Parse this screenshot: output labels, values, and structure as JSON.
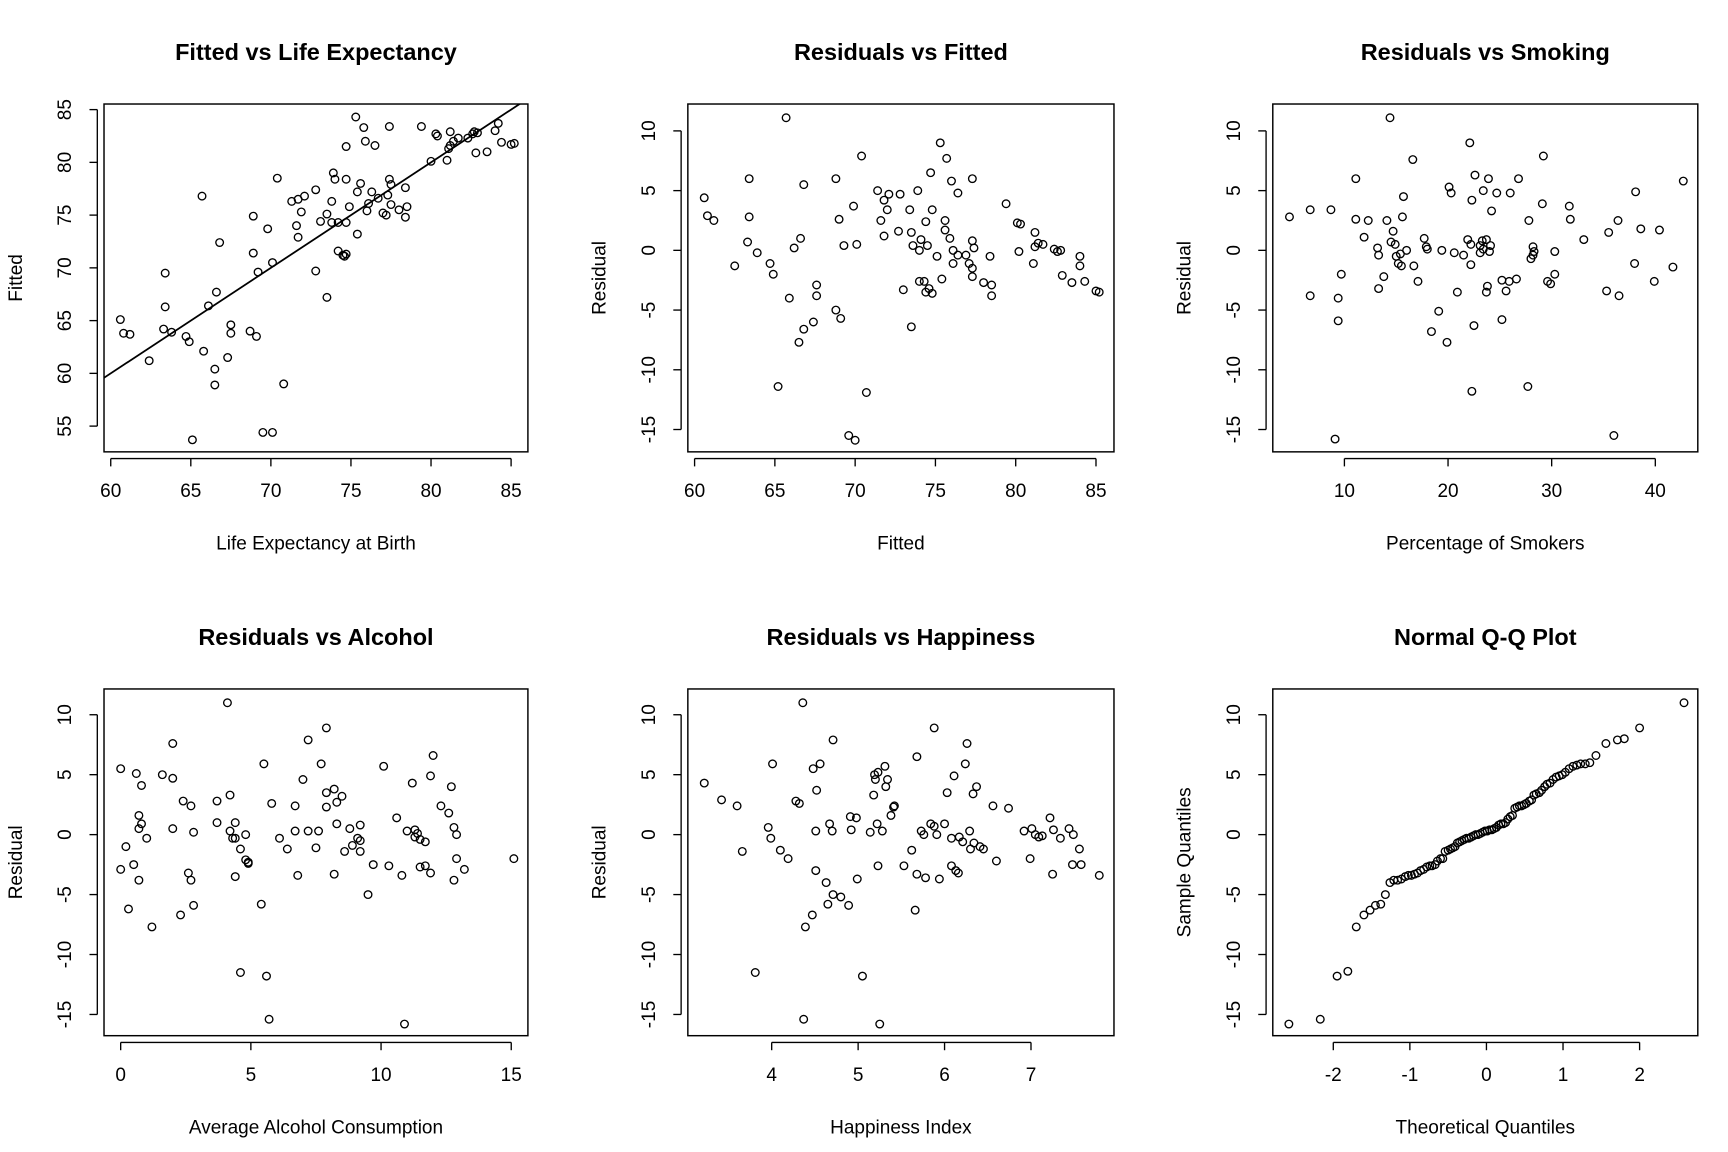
{
  "chart_data": [
    {
      "type": "scatter",
      "title": "Fitted vs Life Expectancy",
      "x_label": "Life Expectancy at Birth",
      "y_label": "Fitted",
      "xlim": [
        59.58,
        86.05
      ],
      "ylim": [
        52.56,
        85.53
      ],
      "xticks": [
        60,
        65,
        70,
        75,
        80,
        85
      ],
      "yticks": [
        55,
        60,
        65,
        70,
        75,
        80,
        85
      ],
      "abline": {
        "intercept": 0,
        "slope": 1
      },
      "x": [
        60.6,
        60.8,
        61.2,
        62.4,
        63.4,
        63.4,
        63.3,
        63.8,
        64.7,
        64.9,
        65.1,
        65.7,
        65.8,
        66.1,
        66.5,
        66.6,
        66.5,
        66.8,
        67.5,
        67.5,
        67.3,
        68.7,
        68.9,
        68.9,
        69.1,
        69.2,
        69.5,
        70.1,
        69.8,
        70.1,
        70.4,
        70.8,
        71.3,
        71.6,
        71.7,
        71.7,
        71.9,
        72.1,
        72.8,
        72.8,
        73.1,
        73.5,
        73.5,
        73.8,
        73.9,
        74.0,
        73.8,
        74.2,
        74.2,
        74.5,
        74.6,
        74.7,
        74.7,
        74.7,
        74.7,
        74.9,
        75.3,
        75.4,
        75.4,
        75.6,
        75.8,
        75.9,
        76.0,
        76.1,
        76.3,
        76.5,
        76.7,
        77.0,
        77.3,
        77.4,
        77.5,
        77.4,
        77.2,
        77.5,
        78.0,
        78.4,
        78.5,
        78.4,
        79.4,
        80.0,
        80.3,
        80.4,
        81.0,
        81.1,
        81.2,
        81.2,
        81.4,
        81.7,
        82.3,
        82.6,
        82.7,
        82.8,
        82.9,
        83.5,
        84.0,
        84.2,
        84.4,
        85.0,
        85.2
      ],
      "values": [
        65.1,
        63.8,
        63.7,
        61.2,
        69.5,
        66.3,
        64.2,
        63.9,
        63.5,
        63.0,
        53.7,
        76.8,
        62.1,
        66.4,
        60.4,
        67.7,
        58.9,
        72.4,
        64.6,
        63.8,
        61.5,
        64.0,
        74.9,
        71.4,
        63.5,
        69.6,
        54.4,
        54.4,
        73.7,
        70.5,
        78.5,
        59.0,
        76.3,
        74.0,
        72.9,
        76.5,
        75.3,
        76.8,
        69.7,
        77.4,
        74.4,
        67.2,
        75.1,
        76.3,
        79.0,
        78.4,
        74.3,
        74.3,
        71.6,
        71.2,
        71.1,
        71.3,
        74.3,
        78.4,
        81.5,
        75.8,
        84.3,
        77.2,
        73.2,
        78.0,
        83.3,
        82.0,
        75.4,
        76.1,
        77.2,
        81.6,
        76.6,
        75.2,
        76.9,
        78.4,
        77.9,
        83.4,
        75.0,
        76.0,
        75.5,
        77.6,
        75.8,
        74.8,
        83.4,
        80.1,
        82.7,
        82.5,
        80.2,
        81.3,
        81.6,
        82.9,
        82.0,
        82.3,
        82.3,
        82.7,
        82.9,
        80.9,
        82.8,
        81.0,
        83.0,
        83.7,
        81.9,
        81.7,
        81.8
      ]
    },
    {
      "type": "scatter",
      "title": "Residuals vs Fitted",
      "x_label": "Fitted",
      "y_label": "Residual",
      "xlim": [
        59.58,
        86.12
      ],
      "ylim": [
        -16.87,
        12.25
      ],
      "xticks": [
        60,
        65,
        70,
        75,
        80,
        85
      ],
      "yticks": [
        -15,
        -10,
        -5,
        0,
        5,
        10
      ],
      "x": [
        60.6,
        60.8,
        61.2,
        62.5,
        63.4,
        63.4,
        63.3,
        63.9,
        64.7,
        64.9,
        65.2,
        65.7,
        65.9,
        66.2,
        66.6,
        66.8,
        66.8,
        66.5,
        67.4,
        67.6,
        67.6,
        68.8,
        69.0,
        68.8,
        69.1,
        69.3,
        69.6,
        70.0,
        69.9,
        70.1,
        70.4,
        70.7,
        71.4,
        71.6,
        71.8,
        71.8,
        72.0,
        72.1,
        72.7,
        72.8,
        73.0,
        73.4,
        73.5,
        73.5,
        73.6,
        73.9,
        74.0,
        74.1,
        74.0,
        74.3,
        74.4,
        74.5,
        74.4,
        74.6,
        74.7,
        74.8,
        74.8,
        75.1,
        75.3,
        75.4,
        75.6,
        75.7,
        75.6,
        75.9,
        76.0,
        76.1,
        76.1,
        76.4,
        76.4,
        76.9,
        77.1,
        77.3,
        77.3,
        77.4,
        77.3,
        77.3,
        78.0,
        78.4,
        78.5,
        78.5,
        79.4,
        80.1,
        80.3,
        80.2,
        81.2,
        81.1,
        81.2,
        81.4,
        81.7,
        82.4,
        82.6,
        82.8,
        82.9,
        83.5,
        84.0,
        84.0,
        84.3,
        85.0,
        85.2
      ],
      "values": [
        4.4,
        2.9,
        2.5,
        -1.3,
        6.0,
        2.8,
        0.7,
        -0.2,
        -1.1,
        -2.0,
        -11.4,
        11.1,
        -4.0,
        0.2,
        1.0,
        5.5,
        -6.6,
        -7.7,
        -6.0,
        -2.9,
        -3.8,
        6.0,
        2.6,
        -5.0,
        -5.7,
        0.4,
        -15.5,
        -15.9,
        3.7,
        0.5,
        7.9,
        -11.9,
        5.0,
        2.5,
        1.2,
        4.2,
        3.4,
        4.7,
        1.6,
        4.7,
        -3.3,
        3.4,
        1.5,
        -6.4,
        0.4,
        5.0,
        0.0,
        0.9,
        -2.6,
        -2.6,
        -3.5,
        0.4,
        2.4,
        -3.2,
        6.5,
        -3.6,
        3.4,
        -0.5,
        9.0,
        -2.4,
        2.5,
        7.7,
        1.7,
        1.0,
        5.8,
        0.0,
        -1.1,
        -0.4,
        4.8,
        -0.4,
        -1.1,
        6.0,
        0.8,
        0.2,
        -1.5,
        -2.2,
        -2.7,
        -0.5,
        -2.9,
        -3.8,
        3.9,
        2.3,
        2.2,
        -0.1,
        1.5,
        -1.1,
        0.3,
        0.6,
        0.5,
        0.1,
        -0.1,
        0.0,
        -2.1,
        -2.7,
        -0.5,
        -1.3,
        -2.6,
        -3.4,
        -3.5
      ]
    },
    {
      "type": "scatter",
      "title": "Residuals vs Smoking",
      "x_label": "Percentage of Smokers",
      "y_label": "Residual",
      "xlim": [
        3.09,
        44.1
      ],
      "ylim": [
        -16.87,
        12.25
      ],
      "xticks": [
        10,
        20,
        30,
        40
      ],
      "yticks": [
        -15,
        -10,
        -5,
        0,
        5,
        10
      ],
      "x": [
        4.7,
        6.7,
        6.7,
        8.7,
        9.1,
        9.4,
        9.4,
        9.7,
        11.1,
        11.1,
        11.9,
        12.3,
        13.2,
        13.3,
        13.3,
        13.8,
        14.1,
        14.4,
        14.5,
        14.7,
        14.9,
        15.0,
        15.2,
        15.4,
        15.7,
        15.6,
        15.5,
        16.0,
        16.6,
        16.7,
        17.1,
        17.7,
        17.9,
        18.0,
        18.4,
        19.1,
        19.4,
        19.9,
        20.1,
        20.3,
        20.6,
        20.9,
        21.5,
        21.9,
        22.1,
        22.2,
        22.2,
        22.3,
        22.3,
        22.5,
        22.6,
        23.1,
        23.1,
        23.3,
        23.4,
        23.4,
        23.7,
        23.7,
        23.9,
        23.8,
        24.0,
        24.1,
        24.2,
        24.7,
        25.2,
        25.2,
        25.6,
        25.9,
        26.0,
        26.6,
        26.8,
        27.7,
        27.8,
        28.0,
        28.2,
        28.2,
        28.3,
        29.2,
        29.1,
        29.6,
        29.9,
        30.3,
        30.3,
        31.7,
        31.8,
        33.1,
        35.3,
        35.5,
        36.0,
        36.4,
        36.5,
        38.1,
        38.0,
        38.6,
        39.9,
        40.4,
        41.7,
        42.7
      ],
      "values": [
        2.8,
        3.4,
        -3.8,
        3.4,
        -15.8,
        -5.9,
        -4.0,
        -2.0,
        6.0,
        2.6,
        1.1,
        2.5,
        0.2,
        -0.4,
        -3.2,
        -2.2,
        2.5,
        11.1,
        0.7,
        1.6,
        0.5,
        -0.5,
        -1.1,
        -0.3,
        4.5,
        2.8,
        -1.3,
        0.0,
        7.6,
        -1.3,
        -2.6,
        1.0,
        0.3,
        0.1,
        -6.8,
        -5.1,
        0.0,
        -7.7,
        5.3,
        4.8,
        -0.2,
        -3.5,
        -0.4,
        0.9,
        9.0,
        -1.2,
        0.5,
        4.2,
        -11.8,
        -6.3,
        6.3,
        0.4,
        -0.2,
        0.8,
        0.1,
        5.0,
        0.9,
        -3.5,
        6.0,
        -3.0,
        -0.1,
        0.4,
        3.3,
        4.8,
        -2.5,
        -5.8,
        -3.4,
        -2.6,
        4.8,
        -2.4,
        6.0,
        -11.4,
        2.5,
        -0.7,
        -0.4,
        0.3,
        -0.1,
        7.9,
        3.9,
        -2.6,
        -2.8,
        -2.0,
        -0.1,
        3.7,
        2.6,
        0.9,
        -3.4,
        1.5,
        -15.5,
        2.5,
        -3.8,
        4.9,
        -1.1,
        1.8,
        -2.6,
        1.7,
        -1.4,
        5.8
      ]
    },
    {
      "type": "scatter",
      "title": "Residuals vs Alcohol",
      "x_label": "Average Alcohol Consumption",
      "y_label": "Residual",
      "xlim": [
        -0.64,
        15.64
      ],
      "ylim": [
        -16.77,
        12.15
      ],
      "xticks": [
        0,
        5,
        10,
        15
      ],
      "yticks": [
        -15,
        -10,
        -5,
        0,
        5,
        10
      ],
      "x": [
        0.0,
        0.0,
        0.2,
        0.3,
        0.5,
        0.6,
        0.7,
        0.7,
        0.7,
        0.8,
        0.8,
        1.0,
        1.2,
        1.6,
        2.0,
        2.0,
        2.0,
        2.3,
        2.4,
        2.6,
        2.7,
        2.7,
        2.8,
        2.8,
        3.7,
        3.7,
        4.1,
        4.2,
        4.2,
        4.3,
        4.4,
        4.4,
        4.4,
        4.6,
        4.6,
        4.8,
        4.8,
        4.9,
        4.9,
        5.4,
        5.5,
        5.6,
        5.7,
        5.8,
        6.1,
        6.4,
        6.7,
        6.7,
        6.8,
        7.0,
        7.2,
        7.2,
        7.5,
        7.6,
        7.7,
        7.9,
        7.9,
        7.9,
        8.2,
        8.2,
        8.3,
        8.3,
        8.5,
        8.6,
        8.8,
        8.9,
        9.1,
        9.2,
        9.2,
        9.2,
        9.5,
        9.7,
        10.1,
        10.3,
        10.6,
        10.8,
        10.9,
        11.0,
        11.2,
        11.3,
        11.3,
        11.4,
        11.5,
        11.5,
        11.7,
        11.7,
        11.9,
        11.9,
        12.0,
        12.3,
        12.6,
        12.7,
        12.8,
        12.8,
        12.9,
        12.9,
        13.2,
        15.1
      ],
      "values": [
        5.5,
        -2.9,
        -1.0,
        -6.2,
        -2.5,
        5.1,
        -3.8,
        1.6,
        0.5,
        0.9,
        4.1,
        -0.3,
        -7.7,
        5.0,
        7.6,
        4.7,
        0.5,
        -6.7,
        2.8,
        -3.2,
        2.4,
        -3.8,
        0.2,
        -5.9,
        2.8,
        1.0,
        11.0,
        0.3,
        3.3,
        -0.3,
        -0.3,
        -3.5,
        1.0,
        -11.5,
        -1.2,
        -2.1,
        0.0,
        -2.4,
        -2.3,
        -5.8,
        5.9,
        -11.8,
        -15.4,
        2.6,
        -0.3,
        -1.2,
        2.4,
        0.3,
        -3.4,
        4.6,
        7.9,
        0.3,
        -1.1,
        0.3,
        5.9,
        8.9,
        3.5,
        2.3,
        -3.3,
        3.8,
        2.7,
        0.9,
        3.2,
        -1.4,
        0.5,
        -0.9,
        -0.3,
        0.8,
        -1.4,
        -0.5,
        -5.0,
        -2.5,
        5.7,
        -2.6,
        1.4,
        -3.4,
        -15.8,
        0.3,
        4.3,
        0.4,
        -0.2,
        0.1,
        -2.7,
        -0.4,
        -2.6,
        -0.6,
        4.9,
        -3.2,
        6.6,
        2.4,
        1.8,
        4.0,
        -3.8,
        0.6,
        0.0,
        -2.0,
        -2.9,
        -2.0
      ]
    },
    {
      "type": "scatter",
      "title": "Residuals vs Happiness",
      "x_label": "Happiness Index",
      "y_label": "Residual",
      "xlim": [
        3.03,
        7.96
      ],
      "ylim": [
        -16.77,
        12.15
      ],
      "xticks": [
        4,
        5,
        6,
        7
      ],
      "yticks": [
        -15,
        -10,
        -5,
        0,
        5,
        10
      ],
      "x": [
        3.22,
        3.42,
        3.6,
        3.66,
        3.81,
        3.96,
        3.99,
        4.01,
        4.1,
        4.19,
        4.28,
        4.32,
        4.36,
        4.37,
        4.39,
        4.47,
        4.48,
        4.51,
        4.52,
        4.51,
        4.56,
        4.63,
        4.65,
        4.67,
        4.7,
        4.71,
        4.71,
        4.8,
        4.89,
        4.91,
        4.92,
        4.98,
        4.99,
        5.05,
        5.14,
        5.18,
        5.19,
        5.2,
        5.23,
        5.23,
        5.22,
        5.25,
        5.28,
        5.31,
        5.32,
        5.34,
        5.38,
        5.41,
        5.42,
        5.53,
        5.62,
        5.66,
        5.68,
        5.68,
        5.73,
        5.76,
        5.78,
        5.84,
        5.88,
        5.88,
        5.91,
        5.94,
        6.0,
        6.03,
        6.08,
        6.08,
        6.11,
        6.13,
        6.16,
        6.17,
        6.21,
        6.24,
        6.26,
        6.29,
        6.3,
        6.33,
        6.34,
        6.37,
        6.41,
        6.45,
        6.56,
        6.6,
        6.74,
        6.92,
        6.99,
        7.01,
        7.05,
        7.09,
        7.13,
        7.22,
        7.25,
        7.26,
        7.34,
        7.44,
        7.48,
        7.49,
        7.56,
        7.58,
        7.79
      ],
      "values": [
        4.3,
        2.9,
        2.4,
        -1.4,
        -11.5,
        0.6,
        -0.3,
        5.9,
        -1.3,
        -2.0,
        2.8,
        2.6,
        11.0,
        -15.4,
        -7.7,
        -6.7,
        5.5,
        0.3,
        3.7,
        -3.0,
        5.9,
        -4.0,
        -5.8,
        0.9,
        0.3,
        7.9,
        -5.0,
        -5.2,
        -5.9,
        1.5,
        0.4,
        1.4,
        -3.7,
        -11.8,
        0.2,
        3.3,
        5.0,
        4.6,
        5.2,
        -2.6,
        0.9,
        -15.8,
        0.3,
        5.7,
        4.0,
        4.6,
        1.6,
        2.3,
        2.4,
        -2.6,
        -1.3,
        -6.3,
        6.5,
        -3.3,
        0.3,
        0.0,
        -3.6,
        0.9,
        8.9,
        0.7,
        0.0,
        -3.7,
        0.9,
        3.5,
        -2.6,
        -0.3,
        4.9,
        -3.0,
        -3.2,
        -0.2,
        -0.6,
        5.9,
        7.6,
        0.3,
        -1.2,
        3.4,
        -0.7,
        4.0,
        -1.0,
        -1.2,
        2.4,
        -2.2,
        2.2,
        0.3,
        -2.0,
        0.5,
        0.0,
        -0.2,
        -0.1,
        1.4,
        -3.3,
        0.4,
        -0.3,
        0.5,
        -2.5,
        0.0,
        -1.2,
        -2.5,
        -3.4
      ]
    },
    {
      "type": "scatter",
      "title": "Normal Q-Q Plot",
      "x_label": "Theoretical Quantiles",
      "y_label": "Sample Quantiles",
      "xlim": [
        -2.79,
        2.76
      ],
      "ylim": [
        -16.77,
        12.15
      ],
      "xticks": [
        -2,
        -1,
        0,
        1,
        2
      ],
      "yticks": [
        -15,
        -10,
        -5,
        0,
        5,
        10
      ],
      "x": [
        -2.58,
        -2.17,
        -1.95,
        -1.81,
        -1.7,
        -1.6,
        -1.52,
        -1.45,
        -1.38,
        -1.32,
        -1.26,
        -1.21,
        -1.16,
        -1.11,
        -1.06,
        -1.02,
        -0.98,
        -0.94,
        -0.9,
        -0.86,
        -0.82,
        -0.78,
        -0.74,
        -0.71,
        -0.67,
        -0.64,
        -0.6,
        -0.57,
        -0.54,
        -0.5,
        -0.47,
        -0.44,
        -0.41,
        -0.38,
        -0.35,
        -0.32,
        -0.29,
        -0.26,
        -0.23,
        -0.2,
        -0.17,
        -0.14,
        -0.11,
        -0.08,
        -0.05,
        -0.02,
        0.01,
        0.04,
        0.07,
        0.1,
        0.13,
        0.16,
        0.19,
        0.22,
        0.25,
        0.28,
        0.31,
        0.34,
        0.37,
        0.4,
        0.43,
        0.46,
        0.49,
        0.52,
        0.56,
        0.59,
        0.62,
        0.65,
        0.69,
        0.72,
        0.76,
        0.79,
        0.83,
        0.87,
        0.91,
        0.95,
        0.99,
        1.03,
        1.08,
        1.13,
        1.18,
        1.23,
        1.29,
        1.35,
        1.43,
        1.56,
        1.71,
        1.8,
        2.0,
        2.58
      ],
      "values": [
        -15.8,
        -15.4,
        -11.8,
        -11.4,
        -7.7,
        -6.7,
        -6.3,
        -5.9,
        -5.8,
        -5.0,
        -4.0,
        -3.8,
        -3.8,
        -3.7,
        -3.5,
        -3.4,
        -3.4,
        -3.3,
        -3.2,
        -3.0,
        -2.9,
        -2.7,
        -2.6,
        -2.6,
        -2.5,
        -2.2,
        -2.0,
        -2.0,
        -1.4,
        -1.3,
        -1.2,
        -1.1,
        -1.0,
        -0.7,
        -0.6,
        -0.5,
        -0.4,
        -0.3,
        -0.3,
        -0.2,
        -0.1,
        0.0,
        0.0,
        0.1,
        0.2,
        0.3,
        0.3,
        0.4,
        0.4,
        0.5,
        0.6,
        0.8,
        0.9,
        0.9,
        1.0,
        1.3,
        1.5,
        1.6,
        2.2,
        2.3,
        2.4,
        2.4,
        2.5,
        2.6,
        2.8,
        2.9,
        3.3,
        3.4,
        3.5,
        3.7,
        4.0,
        4.2,
        4.3,
        4.6,
        4.8,
        4.9,
        5.0,
        5.2,
        5.5,
        5.7,
        5.8,
        5.9,
        5.9,
        6.0,
        6.6,
        7.6,
        7.9,
        8.0,
        8.9,
        11.0
      ]
    }
  ]
}
